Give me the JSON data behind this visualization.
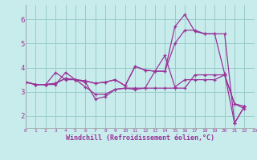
{
  "xlabel": "Windchill (Refroidissement éolien,°C)",
  "bg_color": "#c8ecec",
  "line_color": "#993399",
  "grid_color": "#99cccc",
  "xlim": [
    0,
    23
  ],
  "ylim": [
    1.5,
    6.6
  ],
  "yticks": [
    2,
    3,
    4,
    5,
    6
  ],
  "xticks": [
    0,
    1,
    2,
    3,
    4,
    5,
    6,
    7,
    8,
    9,
    10,
    11,
    12,
    13,
    14,
    15,
    16,
    17,
    18,
    19,
    20,
    21,
    22,
    23
  ],
  "series": [
    {
      "x": [
        0,
        1,
        2,
        3,
        4,
        5,
        6,
        7,
        8,
        9,
        10,
        11,
        12,
        13,
        14,
        15,
        16,
        17,
        18,
        19,
        20,
        21,
        22
      ],
      "y": [
        3.4,
        3.3,
        3.3,
        3.3,
        3.8,
        3.5,
        3.2,
        2.9,
        2.9,
        3.1,
        3.15,
        3.15,
        3.15,
        3.15,
        3.15,
        3.15,
        3.15,
        3.7,
        3.7,
        3.7,
        3.7,
        2.5,
        2.3
      ]
    },
    {
      "x": [
        0,
        1,
        2,
        3,
        4,
        5,
        6,
        7,
        8,
        9,
        10,
        11,
        12,
        13,
        14,
        15,
        16,
        17,
        18,
        19,
        20,
        21,
        22
      ],
      "y": [
        3.4,
        3.3,
        3.3,
        3.8,
        3.5,
        3.5,
        3.4,
        2.7,
        2.8,
        3.1,
        3.15,
        3.1,
        3.15,
        3.85,
        4.5,
        3.2,
        3.5,
        3.5,
        3.5,
        3.5,
        3.7,
        2.5,
        2.4
      ]
    },
    {
      "x": [
        0,
        1,
        2,
        3,
        4,
        5,
        6,
        7,
        8,
        9,
        10,
        11,
        12,
        13,
        14,
        15,
        16,
        17,
        18,
        19,
        20,
        21,
        22
      ],
      "y": [
        3.4,
        3.3,
        3.3,
        3.35,
        3.55,
        3.5,
        3.45,
        3.35,
        3.4,
        3.5,
        3.25,
        4.05,
        3.9,
        3.85,
        3.85,
        5.7,
        6.2,
        5.5,
        5.4,
        5.4,
        5.4,
        1.7,
        2.4
      ]
    },
    {
      "x": [
        0,
        1,
        2,
        3,
        4,
        5,
        6,
        7,
        8,
        9,
        10,
        11,
        12,
        13,
        14,
        15,
        16,
        17,
        18,
        19,
        20,
        21,
        22
      ],
      "y": [
        3.4,
        3.3,
        3.3,
        3.35,
        3.55,
        3.5,
        3.45,
        3.35,
        3.4,
        3.5,
        3.25,
        4.05,
        3.9,
        3.85,
        3.85,
        5.0,
        5.55,
        5.55,
        5.4,
        5.4,
        3.75,
        1.7,
        2.4
      ]
    }
  ]
}
